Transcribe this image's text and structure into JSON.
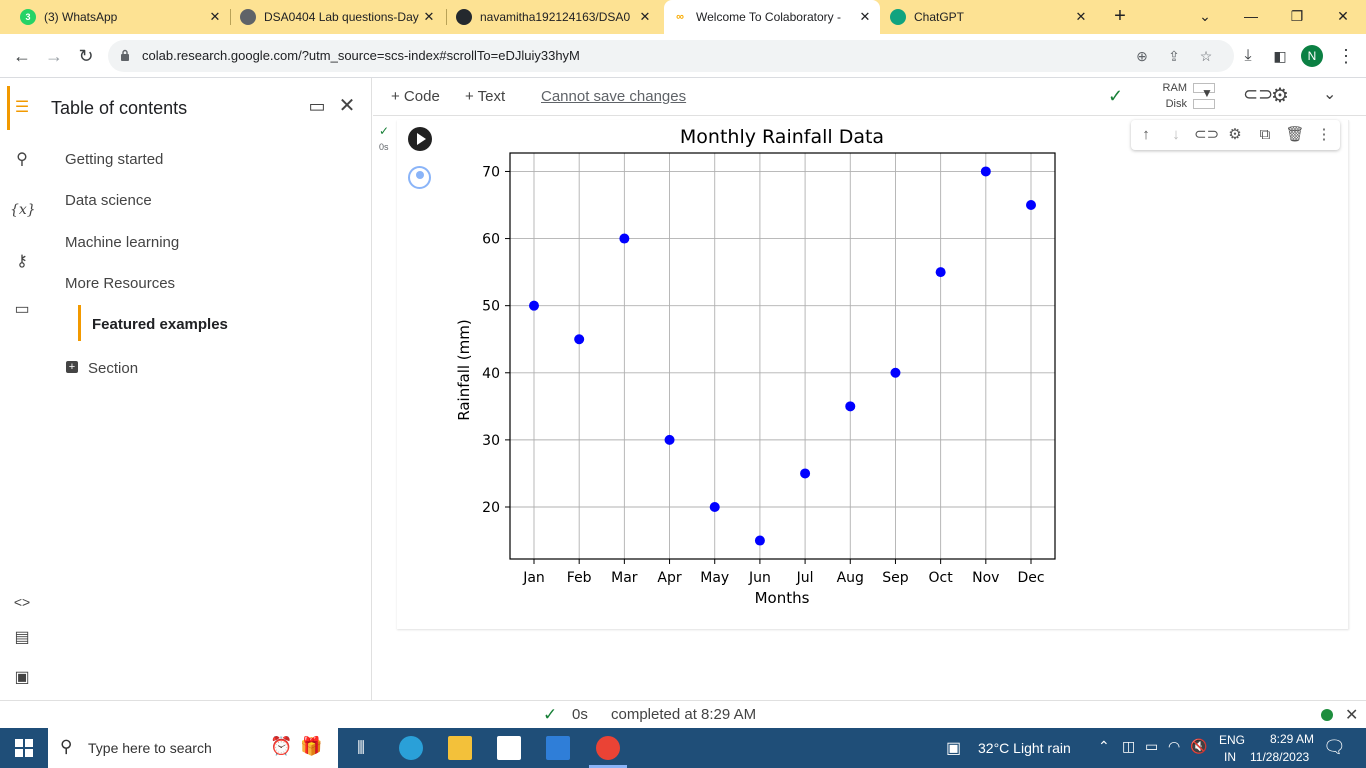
{
  "browser": {
    "tabs": [
      {
        "title": "(3) WhatsApp",
        "badge": "3",
        "icon": "whatsapp-icon",
        "color": "#25d366"
      },
      {
        "title": "DSA0404 Lab questions-Day",
        "icon": "globe-icon",
        "color": "#5f6368"
      },
      {
        "title": "navamitha192124163/DSA0",
        "icon": "github-icon",
        "color": "#24292e"
      },
      {
        "title": "Welcome To Colaboratory -",
        "icon": "colab-icon",
        "color": "#f9ab00",
        "active": true
      },
      {
        "title": "ChatGPT",
        "icon": "chatgpt-icon",
        "color": "#10a37f"
      }
    ],
    "new_tab": "+",
    "url": "colab.research.google.com/?utm_source=scs-index#scrollTo=eDJluiy33hyM",
    "profile_initial": "N"
  },
  "toc": {
    "title": "Table of contents",
    "items": [
      "Getting started",
      "Data science",
      "Machine learning",
      "More Resources"
    ],
    "featured": "Featured examples",
    "section": "Section"
  },
  "toolbar": {
    "code": "+ Code",
    "text": "+ Text",
    "cannot_save": "Cannot save changes",
    "ram": "RAM",
    "disk": "Disk"
  },
  "cell": {
    "status_check": "✓",
    "exec_time": "0s"
  },
  "chart_data": {
    "type": "scatter",
    "title": "Monthly Rainfall Data",
    "xlabel": "Months",
    "ylabel": "Rainfall (mm)",
    "categories": [
      "Jan",
      "Feb",
      "Mar",
      "Apr",
      "May",
      "Jun",
      "Jul",
      "Aug",
      "Sep",
      "Oct",
      "Nov",
      "Dec"
    ],
    "values": [
      50,
      45,
      60,
      30,
      20,
      15,
      25,
      35,
      40,
      55,
      70,
      65
    ],
    "yticks": [
      20,
      30,
      40,
      50,
      60,
      70
    ],
    "ylim": [
      12.25,
      72.75
    ],
    "grid": true,
    "marker_color": "#0000ff"
  },
  "statusbar": {
    "check": "✓",
    "time": "0s",
    "completed": "completed at 8:29 AM"
  },
  "taskbar": {
    "search_placeholder": "Type here to search",
    "weather": "32°C  Light rain",
    "lang1": "ENG",
    "lang2": "IN",
    "time": "8:29 AM",
    "date": "11/28/2023"
  }
}
